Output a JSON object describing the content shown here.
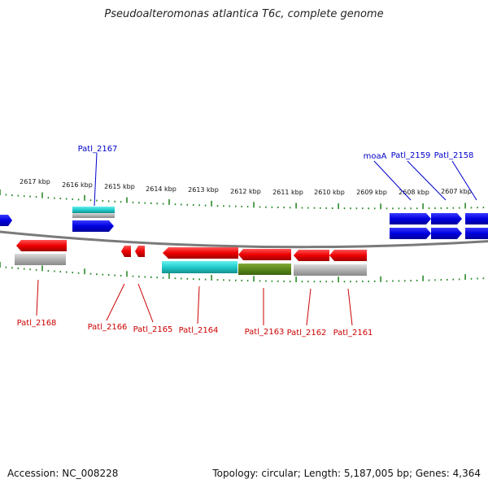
{
  "title": "Pseudoalteromonas atlantica T6c, complete genome",
  "accession": "Accession: NC_008228",
  "stats": "Topology: circular; Length: 5,187,005 bp; Genes: 4,364",
  "scale_labels": [
    "2617 kbp",
    "2616 kbp",
    "2615 kbp",
    "2614 kbp",
    "2613 kbp",
    "2612 kbp",
    "2611 kbp",
    "2610 kbp",
    "2609 kbp",
    "2608 kbp",
    "2607 kbp"
  ],
  "colors": {
    "forward_gene": "#0000e0",
    "reverse_gene": "#ee0000",
    "cds_cyan": "#22cccc",
    "cds_olive": "#5a8a1a",
    "cds_grey": "#b0b0b0",
    "tick": "#2a8a2a",
    "backbone": "#808080",
    "forward_label": "#0000cc",
    "reverse_label": "#cc0000"
  },
  "forward_labels": [
    "Patl_2167",
    "moaA",
    "Patl_2159",
    "Patl_2158"
  ],
  "reverse_labels": [
    "Patl_2168",
    "Patl_2166",
    "Patl_2165",
    "Patl_2164",
    "Patl_2163",
    "Patl_2162",
    "Patl_2161"
  ]
}
